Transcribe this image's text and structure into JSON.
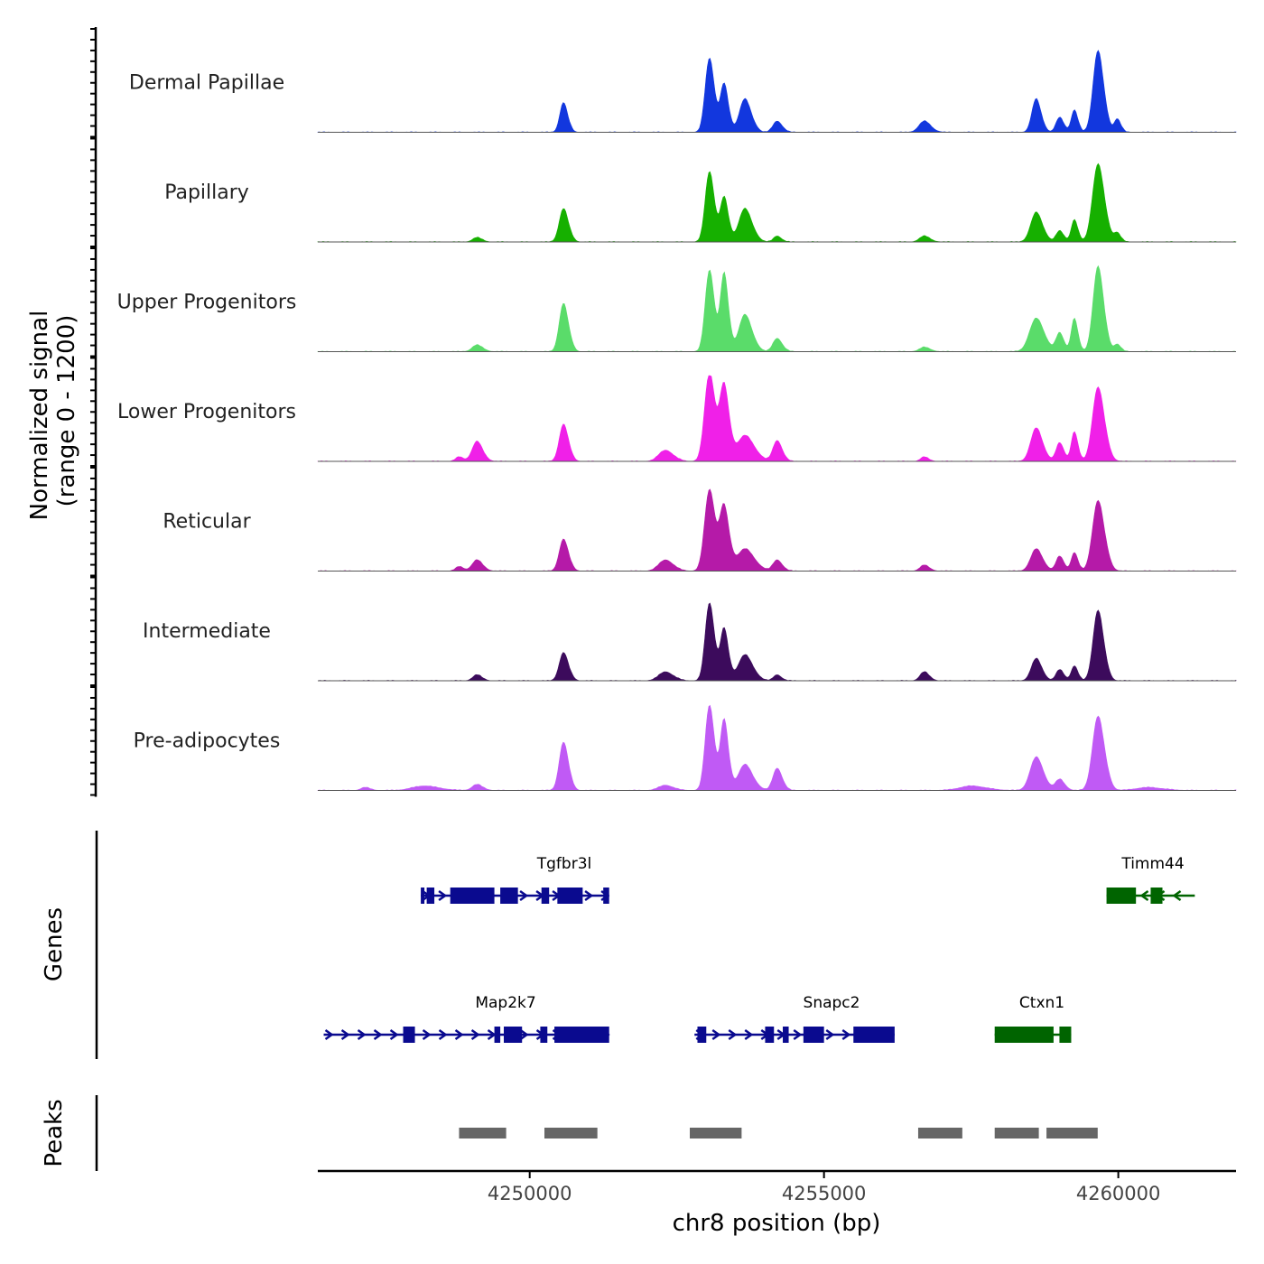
{
  "chart_data": {
    "type": "area",
    "region": {
      "chrom": "chr8",
      "start": 4246400,
      "end": 4262000
    },
    "xlabel": "chr8 position (bp)",
    "xticks": [
      {
        "value": 4250000,
        "label": "4250000"
      },
      {
        "value": 4255000,
        "label": "4255000"
      },
      {
        "value": 4260000,
        "label": "4260000"
      }
    ],
    "ylabel_line1": "Normalized signal",
    "ylabel_line2": "(range 0 - 1200)",
    "ylim": [
      0,
      1200
    ],
    "baseline_color": "#555555",
    "peak_positions": [
      4249100,
      4250570,
      4253050,
      4253300,
      4253650,
      4254200,
      4258600,
      4259000,
      4259250,
      4259650,
      4259900
    ],
    "series": [
      {
        "name": "Dermal Papillae",
        "color": "#1237de",
        "peaks": [
          {
            "center": 4250570,
            "height": 400,
            "width": 60
          },
          {
            "center": 4253050,
            "height": 1000,
            "width": 70
          },
          {
            "center": 4253300,
            "height": 650,
            "width": 60
          },
          {
            "center": 4253650,
            "height": 450,
            "width": 90
          },
          {
            "center": 4254200,
            "height": 150,
            "width": 70
          },
          {
            "center": 4256700,
            "height": 150,
            "width": 90
          },
          {
            "center": 4258600,
            "height": 450,
            "width": 70
          },
          {
            "center": 4259000,
            "height": 200,
            "width": 60
          },
          {
            "center": 4259250,
            "height": 300,
            "width": 50
          },
          {
            "center": 4259650,
            "height": 1100,
            "width": 80
          },
          {
            "center": 4259980,
            "height": 180,
            "width": 50
          }
        ]
      },
      {
        "name": "Papillary",
        "color": "#16b000",
        "peaks": [
          {
            "center": 4249100,
            "height": 60,
            "width": 70
          },
          {
            "center": 4250570,
            "height": 450,
            "width": 70
          },
          {
            "center": 4253050,
            "height": 950,
            "width": 70
          },
          {
            "center": 4253300,
            "height": 600,
            "width": 60
          },
          {
            "center": 4253650,
            "height": 450,
            "width": 100
          },
          {
            "center": 4254200,
            "height": 80,
            "width": 60
          },
          {
            "center": 4256700,
            "height": 80,
            "width": 80
          },
          {
            "center": 4258600,
            "height": 400,
            "width": 90
          },
          {
            "center": 4259000,
            "height": 150,
            "width": 60
          },
          {
            "center": 4259250,
            "height": 300,
            "width": 50
          },
          {
            "center": 4259650,
            "height": 1050,
            "width": 90
          },
          {
            "center": 4259980,
            "height": 120,
            "width": 50
          }
        ]
      },
      {
        "name": "Upper Progenitors",
        "color": "#5adc6a",
        "peaks": [
          {
            "center": 4249100,
            "height": 90,
            "width": 80
          },
          {
            "center": 4250570,
            "height": 650,
            "width": 70
          },
          {
            "center": 4253050,
            "height": 1100,
            "width": 70
          },
          {
            "center": 4253300,
            "height": 1050,
            "width": 60
          },
          {
            "center": 4253650,
            "height": 500,
            "width": 100
          },
          {
            "center": 4254200,
            "height": 180,
            "width": 70
          },
          {
            "center": 4256700,
            "height": 60,
            "width": 80
          },
          {
            "center": 4258600,
            "height": 450,
            "width": 110
          },
          {
            "center": 4259000,
            "height": 250,
            "width": 60
          },
          {
            "center": 4259250,
            "height": 450,
            "width": 50
          },
          {
            "center": 4259650,
            "height": 1150,
            "width": 80
          },
          {
            "center": 4259980,
            "height": 100,
            "width": 50
          }
        ]
      },
      {
        "name": "Lower Progenitors",
        "color": "#f020e8",
        "peaks": [
          {
            "center": 4248800,
            "height": 60,
            "width": 60
          },
          {
            "center": 4249100,
            "height": 270,
            "width": 80
          },
          {
            "center": 4250570,
            "height": 500,
            "width": 70
          },
          {
            "center": 4252300,
            "height": 150,
            "width": 110
          },
          {
            "center": 4253050,
            "height": 1200,
            "width": 80
          },
          {
            "center": 4253300,
            "height": 1000,
            "width": 70
          },
          {
            "center": 4253650,
            "height": 350,
            "width": 130
          },
          {
            "center": 4254200,
            "height": 280,
            "width": 70
          },
          {
            "center": 4256700,
            "height": 60,
            "width": 60
          },
          {
            "center": 4258600,
            "height": 450,
            "width": 90
          },
          {
            "center": 4259000,
            "height": 250,
            "width": 60
          },
          {
            "center": 4259250,
            "height": 400,
            "width": 50
          },
          {
            "center": 4259650,
            "height": 1000,
            "width": 90
          }
        ]
      },
      {
        "name": "Reticular",
        "color": "#b51aa8",
        "peaks": [
          {
            "center": 4248800,
            "height": 60,
            "width": 60
          },
          {
            "center": 4249100,
            "height": 150,
            "width": 80
          },
          {
            "center": 4250570,
            "height": 430,
            "width": 70
          },
          {
            "center": 4252300,
            "height": 150,
            "width": 110
          },
          {
            "center": 4253050,
            "height": 1100,
            "width": 80
          },
          {
            "center": 4253300,
            "height": 850,
            "width": 70
          },
          {
            "center": 4253650,
            "height": 300,
            "width": 130
          },
          {
            "center": 4254200,
            "height": 150,
            "width": 70
          },
          {
            "center": 4256700,
            "height": 80,
            "width": 70
          },
          {
            "center": 4258600,
            "height": 300,
            "width": 90
          },
          {
            "center": 4259000,
            "height": 200,
            "width": 60
          },
          {
            "center": 4259250,
            "height": 250,
            "width": 50
          },
          {
            "center": 4259650,
            "height": 950,
            "width": 90
          }
        ]
      },
      {
        "name": "Intermediate",
        "color": "#3c0b5c",
        "peaks": [
          {
            "center": 4249100,
            "height": 80,
            "width": 70
          },
          {
            "center": 4250570,
            "height": 380,
            "width": 70
          },
          {
            "center": 4252300,
            "height": 120,
            "width": 110
          },
          {
            "center": 4253050,
            "height": 1050,
            "width": 70
          },
          {
            "center": 4253300,
            "height": 700,
            "width": 60
          },
          {
            "center": 4253650,
            "height": 350,
            "width": 110
          },
          {
            "center": 4254200,
            "height": 80,
            "width": 60
          },
          {
            "center": 4256700,
            "height": 120,
            "width": 70
          },
          {
            "center": 4258600,
            "height": 300,
            "width": 80
          },
          {
            "center": 4259000,
            "height": 150,
            "width": 60
          },
          {
            "center": 4259250,
            "height": 200,
            "width": 50
          },
          {
            "center": 4259650,
            "height": 950,
            "width": 80
          }
        ]
      },
      {
        "name": "Pre-adipocytes",
        "color": "#c05af5",
        "peaks": [
          {
            "center": 4247200,
            "height": 40,
            "width": 70
          },
          {
            "center": 4248200,
            "height": 60,
            "width": 200
          },
          {
            "center": 4249100,
            "height": 80,
            "width": 80
          },
          {
            "center": 4250570,
            "height": 650,
            "width": 70
          },
          {
            "center": 4252300,
            "height": 70,
            "width": 110
          },
          {
            "center": 4253050,
            "height": 1150,
            "width": 70
          },
          {
            "center": 4253300,
            "height": 950,
            "width": 60
          },
          {
            "center": 4253650,
            "height": 350,
            "width": 110
          },
          {
            "center": 4254200,
            "height": 300,
            "width": 70
          },
          {
            "center": 4257500,
            "height": 60,
            "width": 200
          },
          {
            "center": 4258600,
            "height": 450,
            "width": 100
          },
          {
            "center": 4259000,
            "height": 150,
            "width": 70
          },
          {
            "center": 4259650,
            "height": 1000,
            "width": 90
          },
          {
            "center": 4260500,
            "height": 40,
            "width": 200
          }
        ]
      }
    ],
    "genes_label": "Genes",
    "genes": [
      {
        "name": "Tgfbr3l",
        "strand": "+",
        "color": "#0a0a8f",
        "row": 0,
        "start": 4248150,
        "end": 4251350,
        "exons": [
          [
            4248150,
            4248200
          ],
          [
            4248250,
            4248380
          ],
          [
            4248650,
            4249400
          ],
          [
            4249500,
            4249800
          ],
          [
            4250200,
            4250330
          ],
          [
            4250470,
            4250900
          ],
          [
            4251250,
            4251350
          ]
        ]
      },
      {
        "name": "Timm44",
        "strand": "-",
        "color": "#006400",
        "row": 0,
        "start": 4259800,
        "end": 4261300,
        "exons": [
          [
            4259800,
            4260300
          ],
          [
            4260550,
            4260750
          ]
        ]
      },
      {
        "name": "Map2k7",
        "strand": "+",
        "color": "#0a0a8f",
        "row": 1,
        "start": 4246500,
        "end": 4251350,
        "exons": [
          [
            4247850,
            4248050
          ],
          [
            4249400,
            4249500
          ],
          [
            4249560,
            4249870
          ],
          [
            4250180,
            4250300
          ],
          [
            4250420,
            4251350
          ]
        ]
      },
      {
        "name": "Snapc2",
        "strand": "+",
        "color": "#0a0a8f",
        "row": 1,
        "start": 4252800,
        "end": 4256200,
        "exons": [
          [
            4252850,
            4253000
          ],
          [
            4254000,
            4254150
          ],
          [
            4254300,
            4254400
          ],
          [
            4254650,
            4255000
          ],
          [
            4255500,
            4256200
          ]
        ]
      },
      {
        "name": "Ctxn1",
        "strand": "-",
        "color": "#006400",
        "row": 1,
        "start": 4257900,
        "end": 4259200,
        "exons": [
          [
            4257900,
            4258900
          ],
          [
            4259000,
            4259200
          ]
        ]
      }
    ],
    "peaks_label": "Peaks",
    "peak_color": "#666666",
    "peak_regions": [
      [
        4248800,
        4249600
      ],
      [
        4250250,
        4251150
      ],
      [
        4252720,
        4253600
      ],
      [
        4256600,
        4257350
      ],
      [
        4257900,
        4258650
      ],
      [
        4258780,
        4259650
      ]
    ]
  }
}
